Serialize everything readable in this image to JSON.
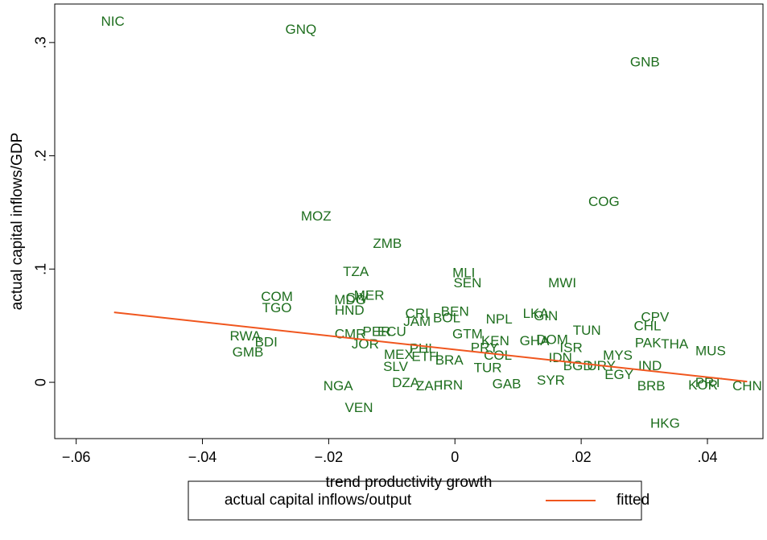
{
  "chart_data": {
    "type": "scatter",
    "xlabel": "trend productivity growth",
    "ylabel": "actual capital inflows/GDP",
    "xlim": [
      -0.0634,
      0.0488
    ],
    "ylim": [
      -0.0497,
      0.334
    ],
    "xticks": [
      {
        "value": -0.06,
        "label": "−.06"
      },
      {
        "value": -0.04,
        "label": "−.04"
      },
      {
        "value": -0.02,
        "label": "−.02"
      },
      0,
      {
        "value": 0.02,
        "label": ".02"
      },
      {
        "value": 0.04,
        "label": ".04"
      }
    ],
    "yticks": [
      0,
      {
        "value": 0.1,
        "label": ".1"
      },
      {
        "value": 0.2,
        "label": ".2"
      },
      {
        "value": 0.3,
        "label": ".3"
      }
    ],
    "legend": "bottom",
    "series": [
      {
        "name": "actual capital inflows/output",
        "type": "scatter",
        "color": "#1e6e1e",
        "labels": [
          "NIC",
          "GNQ",
          "GNB",
          "COG",
          "MOZ",
          "ZMB",
          "TZA",
          "MLI",
          "SEN",
          "MWI",
          "COM",
          "CIV",
          "MDG",
          "MER",
          "HND",
          "TGO",
          "CRI",
          "BEN",
          "BOL",
          "JAM",
          "NPL",
          "LKA",
          "GIN",
          "CPV",
          "CHL",
          "TUN",
          "RWA",
          "BDI",
          "GMB",
          "CMR",
          "PER",
          "ECU",
          "JOR",
          "GTM",
          "KEN",
          "GHA",
          "DOM",
          "PAK",
          "THA",
          "MUS",
          "PHL",
          "PRY",
          "MEX",
          "ETH",
          "IDN",
          "ISR",
          "MYS",
          "BGD",
          "URY",
          "IND",
          "EGY",
          "SLV",
          "TUR",
          "BRA",
          "COL",
          "IRN",
          "ZAF",
          "DZA",
          "NGA",
          "GAB",
          "SYR",
          "BRB",
          "KOR",
          "PRT",
          "CHN",
          "VEN",
          "HKG"
        ],
        "x": [
          -0.0542,
          -0.0244,
          0.0301,
          0.0236,
          -0.022,
          -0.0107,
          -0.0157,
          0.0014,
          0.002,
          0.017,
          -0.0282,
          -0.0155,
          -0.0166,
          -0.0136,
          -0.0167,
          -0.0282,
          -0.006,
          0.0,
          -0.0013,
          -0.006,
          0.007,
          0.0128,
          0.0144,
          0.0317,
          0.0305,
          0.0209,
          -0.0332,
          -0.0299,
          -0.0328,
          -0.0166,
          -0.0124,
          -0.01,
          -0.0142,
          0.002,
          0.0064,
          0.0126,
          0.0154,
          0.0306,
          0.0348,
          0.0405,
          -0.0051,
          0.0047,
          -0.0089,
          -0.0047,
          0.0167,
          0.0184,
          0.0258,
          0.0195,
          0.0232,
          0.0309,
          0.026,
          -0.0094,
          0.0052,
          -0.0009,
          0.0068,
          -0.0006,
          -0.0041,
          -0.0078,
          -0.0185,
          0.0082,
          0.0152,
          0.0311,
          0.0393,
          0.0402,
          0.0463,
          -0.0152,
          0.0333
        ],
        "values": [
          0.318,
          0.311,
          0.282,
          0.159,
          0.146,
          0.122,
          0.097,
          0.096,
          0.087,
          0.087,
          0.075,
          0.074,
          0.072,
          0.076,
          0.063,
          0.065,
          0.06,
          0.062,
          0.056,
          0.053,
          0.055,
          0.06,
          0.058,
          0.057,
          0.049,
          0.045,
          0.04,
          0.035,
          0.026,
          0.042,
          0.044,
          0.044,
          0.033,
          0.042,
          0.036,
          0.036,
          0.037,
          0.034,
          0.033,
          0.027,
          0.029,
          0.03,
          0.024,
          0.022,
          0.021,
          0.03,
          0.023,
          0.014,
          0.014,
          0.014,
          0.006,
          0.013,
          0.012,
          0.019,
          0.023,
          -0.003,
          -0.004,
          -0.001,
          -0.004,
          -0.002,
          0.001,
          -0.004,
          -0.003,
          -0.001,
          -0.004,
          -0.023,
          -0.037
        ]
      },
      {
        "name": "fitted",
        "type": "line",
        "color": "#f0561e",
        "x": [
          -0.054,
          0.0463
        ],
        "values": [
          0.0618,
          0.0007
        ]
      }
    ]
  }
}
